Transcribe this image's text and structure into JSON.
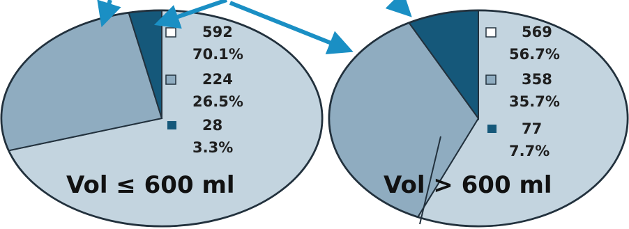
{
  "chart_data": [
    {
      "type": "pie",
      "label": "Vol ≤ 600 ml",
      "slices": [
        {
          "count": "592",
          "percent": "70.1%",
          "value": 70.1,
          "color": "#c3d4df"
        },
        {
          "count": "224",
          "percent": "26.5%",
          "value": 26.5,
          "color": "#8facc0"
        },
        {
          "count": "28",
          "percent": "3.3%",
          "value": 3.3,
          "color": "#15587a"
        }
      ]
    },
    {
      "type": "pie",
      "label": "Vol > 600 ml",
      "slices": [
        {
          "count": "569",
          "percent": "56.7%",
          "value": 56.7,
          "color": "#c3d4df"
        },
        {
          "count": "358",
          "percent": "35.7%",
          "value": 35.7,
          "color": "#8facc0"
        },
        {
          "count": "77",
          "percent": "7.7%",
          "value": 7.7,
          "color": "#15587a"
        }
      ]
    }
  ],
  "colors": {
    "arrow": "#1a8fc4",
    "outline": "#22313d"
  }
}
